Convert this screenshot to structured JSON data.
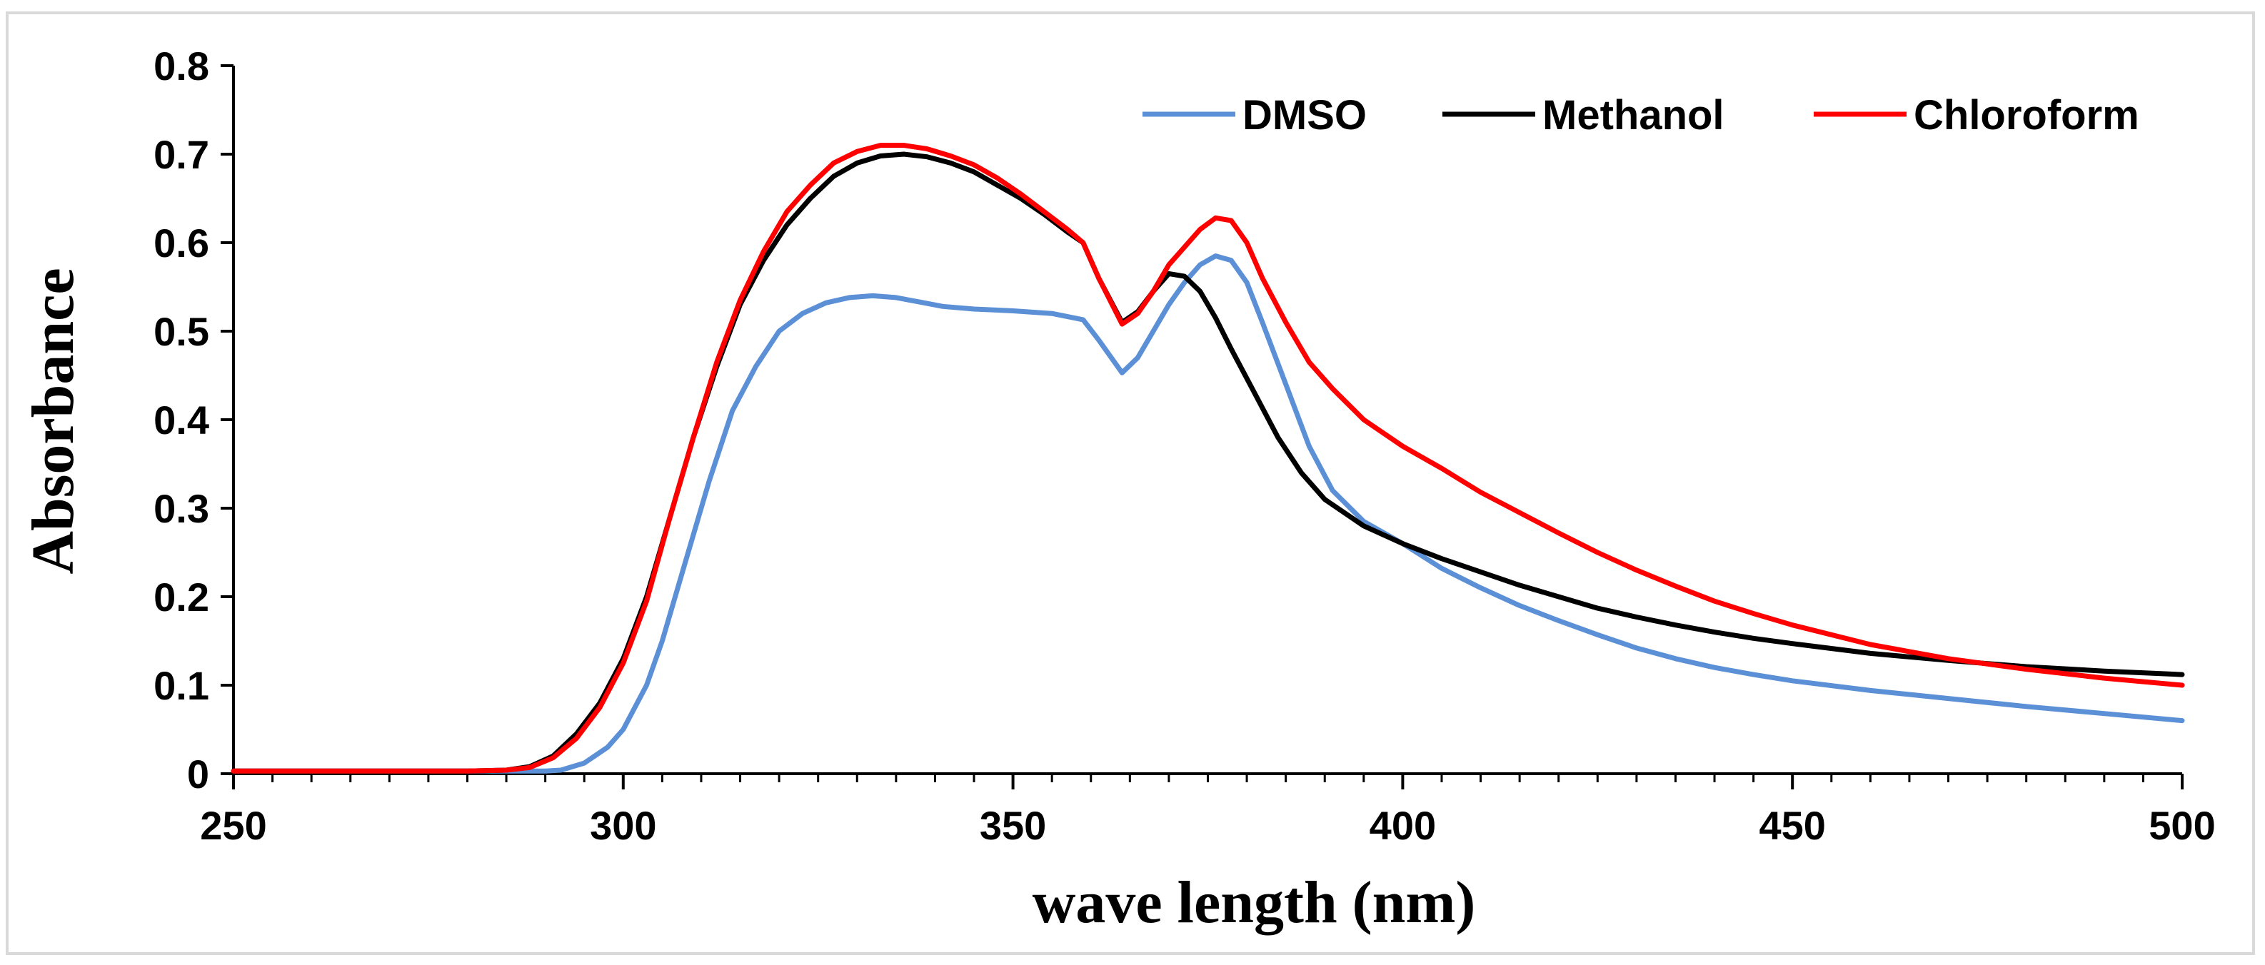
{
  "chart_data": {
    "type": "line",
    "title": "",
    "xlabel": "wave length (nm)",
    "ylabel": "Absorbance",
    "xlim": [
      250,
      500
    ],
    "ylim": [
      0,
      0.8
    ],
    "x_ticks": [
      250,
      300,
      350,
      400,
      450,
      500
    ],
    "x_tick_labels": [
      "250",
      "300",
      "350",
      "400",
      "450",
      "500"
    ],
    "y_ticks": [
      0,
      0.1,
      0.2,
      0.3,
      0.4,
      0.5,
      0.6,
      0.7,
      0.8
    ],
    "y_tick_labels": [
      "0",
      "0.1",
      "0.2",
      "0.3",
      "0.4",
      "0.5",
      "0.6",
      "0.7",
      "0.8"
    ],
    "grid": false,
    "legend_position": "top-right",
    "series": [
      {
        "name": "DMSO",
        "color": "#5B8FD6",
        "points": [
          [
            250,
            0.003
          ],
          [
            270,
            0.003
          ],
          [
            285,
            0.003
          ],
          [
            290,
            0.003
          ],
          [
            292,
            0.004
          ],
          [
            295,
            0.012
          ],
          [
            298,
            0.03
          ],
          [
            300,
            0.05
          ],
          [
            303,
            0.1
          ],
          [
            305,
            0.15
          ],
          [
            308,
            0.24
          ],
          [
            311,
            0.33
          ],
          [
            314,
            0.41
          ],
          [
            317,
            0.46
          ],
          [
            320,
            0.5
          ],
          [
            323,
            0.52
          ],
          [
            326,
            0.532
          ],
          [
            329,
            0.538
          ],
          [
            332,
            0.54
          ],
          [
            335,
            0.538
          ],
          [
            338,
            0.533
          ],
          [
            341,
            0.528
          ],
          [
            345,
            0.525
          ],
          [
            350,
            0.523
          ],
          [
            355,
            0.52
          ],
          [
            359,
            0.513
          ],
          [
            361,
            0.49
          ],
          [
            364,
            0.453
          ],
          [
            366,
            0.47
          ],
          [
            368,
            0.5
          ],
          [
            370,
            0.53
          ],
          [
            372,
            0.555
          ],
          [
            374,
            0.575
          ],
          [
            376,
            0.585
          ],
          [
            378,
            0.58
          ],
          [
            380,
            0.555
          ],
          [
            382,
            0.51
          ],
          [
            385,
            0.44
          ],
          [
            388,
            0.37
          ],
          [
            391,
            0.32
          ],
          [
            395,
            0.285
          ],
          [
            400,
            0.26
          ],
          [
            405,
            0.232
          ],
          [
            410,
            0.21
          ],
          [
            415,
            0.19
          ],
          [
            420,
            0.173
          ],
          [
            425,
            0.157
          ],
          [
            430,
            0.142
          ],
          [
            435,
            0.13
          ],
          [
            440,
            0.12
          ],
          [
            445,
            0.112
          ],
          [
            450,
            0.105
          ],
          [
            460,
            0.094
          ],
          [
            470,
            0.085
          ],
          [
            480,
            0.076
          ],
          [
            490,
            0.068
          ],
          [
            500,
            0.06
          ]
        ]
      },
      {
        "name": "Methanol",
        "color": "#000000",
        "points": [
          [
            250,
            0.003
          ],
          [
            270,
            0.003
          ],
          [
            280,
            0.003
          ],
          [
            285,
            0.004
          ],
          [
            288,
            0.008
          ],
          [
            291,
            0.02
          ],
          [
            294,
            0.045
          ],
          [
            297,
            0.08
          ],
          [
            300,
            0.13
          ],
          [
            303,
            0.2
          ],
          [
            306,
            0.29
          ],
          [
            309,
            0.38
          ],
          [
            312,
            0.46
          ],
          [
            315,
            0.53
          ],
          [
            318,
            0.58
          ],
          [
            321,
            0.62
          ],
          [
            324,
            0.65
          ],
          [
            327,
            0.675
          ],
          [
            330,
            0.69
          ],
          [
            333,
            0.698
          ],
          [
            336,
            0.7
          ],
          [
            339,
            0.697
          ],
          [
            342,
            0.69
          ],
          [
            345,
            0.68
          ],
          [
            348,
            0.665
          ],
          [
            351,
            0.65
          ],
          [
            354,
            0.632
          ],
          [
            357,
            0.612
          ],
          [
            359,
            0.6
          ],
          [
            361,
            0.56
          ],
          [
            364,
            0.51
          ],
          [
            366,
            0.522
          ],
          [
            368,
            0.545
          ],
          [
            370,
            0.565
          ],
          [
            372,
            0.562
          ],
          [
            374,
            0.545
          ],
          [
            376,
            0.515
          ],
          [
            378,
            0.48
          ],
          [
            381,
            0.43
          ],
          [
            384,
            0.38
          ],
          [
            387,
            0.34
          ],
          [
            390,
            0.31
          ],
          [
            395,
            0.28
          ],
          [
            400,
            0.26
          ],
          [
            405,
            0.243
          ],
          [
            410,
            0.228
          ],
          [
            415,
            0.213
          ],
          [
            420,
            0.2
          ],
          [
            425,
            0.187
          ],
          [
            430,
            0.177
          ],
          [
            435,
            0.168
          ],
          [
            440,
            0.16
          ],
          [
            445,
            0.153
          ],
          [
            450,
            0.147
          ],
          [
            460,
            0.136
          ],
          [
            470,
            0.128
          ],
          [
            480,
            0.121
          ],
          [
            490,
            0.116
          ],
          [
            500,
            0.112
          ]
        ]
      },
      {
        "name": "Chloroform",
        "color": "#FF0000",
        "points": [
          [
            250,
            0.003
          ],
          [
            270,
            0.003
          ],
          [
            280,
            0.003
          ],
          [
            285,
            0.004
          ],
          [
            288,
            0.007
          ],
          [
            291,
            0.018
          ],
          [
            294,
            0.04
          ],
          [
            297,
            0.075
          ],
          [
            300,
            0.125
          ],
          [
            303,
            0.195
          ],
          [
            306,
            0.29
          ],
          [
            309,
            0.38
          ],
          [
            312,
            0.465
          ],
          [
            315,
            0.535
          ],
          [
            318,
            0.59
          ],
          [
            321,
            0.635
          ],
          [
            324,
            0.665
          ],
          [
            327,
            0.69
          ],
          [
            330,
            0.703
          ],
          [
            333,
            0.71
          ],
          [
            336,
            0.71
          ],
          [
            339,
            0.706
          ],
          [
            342,
            0.698
          ],
          [
            345,
            0.688
          ],
          [
            348,
            0.673
          ],
          [
            351,
            0.655
          ],
          [
            354,
            0.635
          ],
          [
            357,
            0.615
          ],
          [
            359,
            0.6
          ],
          [
            361,
            0.56
          ],
          [
            364,
            0.508
          ],
          [
            366,
            0.52
          ],
          [
            368,
            0.545
          ],
          [
            370,
            0.575
          ],
          [
            372,
            0.595
          ],
          [
            374,
            0.615
          ],
          [
            376,
            0.628
          ],
          [
            378,
            0.625
          ],
          [
            380,
            0.6
          ],
          [
            382,
            0.56
          ],
          [
            385,
            0.51
          ],
          [
            388,
            0.465
          ],
          [
            391,
            0.435
          ],
          [
            395,
            0.4
          ],
          [
            400,
            0.37
          ],
          [
            405,
            0.345
          ],
          [
            410,
            0.318
          ],
          [
            415,
            0.295
          ],
          [
            420,
            0.272
          ],
          [
            425,
            0.25
          ],
          [
            430,
            0.23
          ],
          [
            435,
            0.212
          ],
          [
            440,
            0.195
          ],
          [
            445,
            0.181
          ],
          [
            450,
            0.168
          ],
          [
            460,
            0.146
          ],
          [
            470,
            0.13
          ],
          [
            480,
            0.118
          ],
          [
            490,
            0.108
          ],
          [
            500,
            0.1
          ]
        ]
      }
    ]
  }
}
